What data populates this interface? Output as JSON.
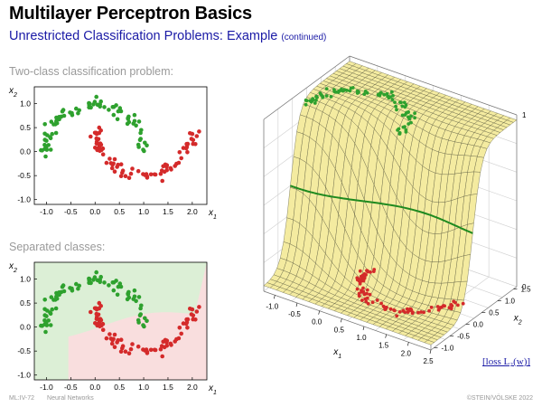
{
  "slide": {
    "title": "Multilayer Perceptron Basics",
    "subtitle": "Unrestricted Classification Problems: Example",
    "subtitle_note": "(continued)",
    "label_top": "Two-class classification problem:",
    "label_bottom": "Separated classes:",
    "footer_id": "ML:IV-72",
    "footer_topic": "Neural Networks",
    "footer_copyright": "©STEIN/VÖLSKE 2022",
    "loss_link": "[loss L₂(w)]"
  },
  "colors": {
    "class_green": "#2ea12e",
    "class_red": "#d42a2a",
    "region_green": "#dcefd6",
    "region_red": "#f9dede",
    "surface_fill": "#f4eba0",
    "surface_mesh": "#55553a",
    "boundary_line": "#1f8a1f"
  },
  "chart_data": [
    {
      "type": "scatter",
      "xlabel": "x1",
      "ylabel": "x2",
      "xticks": [
        "-1.0",
        "-0.5",
        "0.0",
        "0.5",
        "1.0",
        "1.5",
        "2.0"
      ],
      "yticks": [
        "1.0",
        "0.5",
        "0.0",
        "-0.5",
        "-1.0"
      ],
      "xlim": [
        -1.25,
        2.3
      ],
      "ylim": [
        -1.1,
        1.35
      ],
      "series": [
        {
          "class": "green",
          "shape": "upper moon",
          "center": [
            0.0,
            0.0
          ],
          "radius": 1.0,
          "angle_range_deg": [
            0,
            180
          ],
          "count": 80
        },
        {
          "class": "red",
          "shape": "lower moon",
          "center": [
            1.0,
            0.5
          ],
          "radius": 1.0,
          "angle_range_deg": [
            180,
            360
          ],
          "count": 80
        }
      ]
    },
    {
      "type": "scatter",
      "xlabel": "x1",
      "ylabel": "x2",
      "xticks": [
        "-1.0",
        "-0.5",
        "0.0",
        "0.5",
        "1.0",
        "1.5",
        "2.0"
      ],
      "yticks": [
        "1.0",
        "0.5",
        "0.0",
        "-0.5",
        "-1.0"
      ],
      "xlim": [
        -1.25,
        2.3
      ],
      "ylim": [
        -1.1,
        1.35
      ],
      "background_regions": [
        "green",
        "red"
      ],
      "series": [
        {
          "class": "green",
          "shape": "upper moon",
          "center": [
            0.0,
            0.0
          ],
          "radius": 1.0,
          "angle_range_deg": [
            0,
            180
          ],
          "count": 80
        },
        {
          "class": "red",
          "shape": "lower moon",
          "center": [
            1.0,
            0.5
          ],
          "radius": 1.0,
          "angle_range_deg": [
            180,
            360
          ],
          "count": 80
        }
      ]
    },
    {
      "type": "surface3d",
      "xlabel": "x1",
      "ylabel": "x2",
      "xticks": [
        "-1.0",
        "-0.5",
        "0.0",
        "0.5",
        "1.0",
        "1.5",
        "2.0",
        "2.5"
      ],
      "yticks": [
        "1.5",
        "1.0",
        "0.5",
        "0.0",
        "-0.5",
        "-1.0"
      ],
      "zticks": [
        "1",
        "0"
      ],
      "xlim": [
        -1.25,
        2.5
      ],
      "ylim": [
        -1.1,
        1.6
      ],
      "zlim": [
        0,
        1
      ],
      "decision_boundary_level": 0.5
    }
  ]
}
